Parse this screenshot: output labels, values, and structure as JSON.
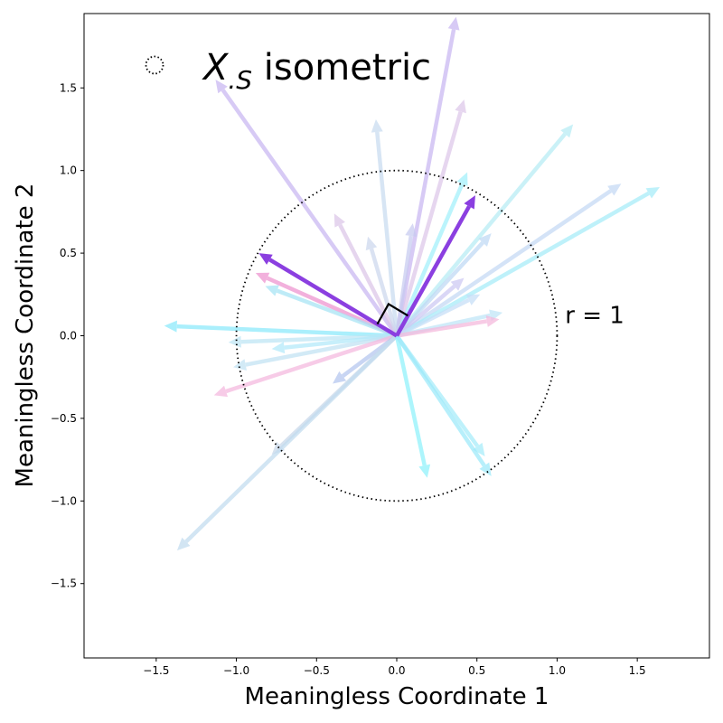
{
  "chart_data": {
    "type": "vector-field",
    "xlabel": "Meaningless Coordinate 1",
    "ylabel": "Meaningless Coordinate 2",
    "xlim": [
      -1.95,
      1.95
    ],
    "ylim": [
      -1.95,
      1.95
    ],
    "xticks": [
      -1.5,
      -1.0,
      -0.5,
      0.0,
      0.5,
      1.0,
      1.5
    ],
    "yticks": [
      -1.5,
      -1.0,
      -0.5,
      0.0,
      0.5,
      1.0,
      1.5
    ],
    "tick_labels": [
      "−1.5",
      "−1.0",
      "−0.5",
      "0.0",
      "0.5",
      "1.0",
      "1.5"
    ],
    "grid": false,
    "circle": {
      "radius": 1,
      "style": "dotted",
      "label": "r = 1",
      "label_pos": [
        1.05,
        0.13
      ]
    },
    "legend": {
      "placement": "top-left",
      "marker": "dotted-circle",
      "label_main": "X",
      "label_sub": ".S",
      "label_rest": " isometric"
    },
    "right_angle_marker": {
      "size": 0.14
    },
    "highlighted_vectors": [
      {
        "x": 0.49,
        "y": 0.85,
        "color": "#8b3fe0"
      },
      {
        "x": -0.86,
        "y": 0.5,
        "color": "#8b3fe0"
      }
    ],
    "vectors": [
      {
        "x": 0.37,
        "y": 1.93,
        "color": "#c8b7f2"
      },
      {
        "x": -1.13,
        "y": 1.55,
        "color": "#c8b7f2"
      },
      {
        "x": 0.42,
        "y": 1.43,
        "color": "#ddc7ea"
      },
      {
        "x": -0.13,
        "y": 1.31,
        "color": "#c9dcf0"
      },
      {
        "x": 1.1,
        "y": 1.28,
        "color": "#b6ecf5"
      },
      {
        "x": 1.4,
        "y": 0.92,
        "color": "#c4d9f5"
      },
      {
        "x": 1.64,
        "y": 0.9,
        "color": "#a6ecf9"
      },
      {
        "x": 0.44,
        "y": 0.99,
        "color": "#a2f0fb"
      },
      {
        "x": -0.39,
        "y": 0.74,
        "color": "#dcc6e8"
      },
      {
        "x": 0.1,
        "y": 0.68,
        "color": "#c7cbf0"
      },
      {
        "x": -0.18,
        "y": 0.6,
        "color": "#cdd8ee"
      },
      {
        "x": 0.59,
        "y": 0.62,
        "color": "#bfd9f5"
      },
      {
        "x": 0.42,
        "y": 0.35,
        "color": "#ccc8f3"
      },
      {
        "x": 0.52,
        "y": 0.25,
        "color": "#c6def8"
      },
      {
        "x": 0.66,
        "y": 0.14,
        "color": "#bfe6f8"
      },
      {
        "x": 0.64,
        "y": 0.1,
        "color": "#f5b8dc"
      },
      {
        "x": -0.88,
        "y": 0.38,
        "color": "#ee93cf"
      },
      {
        "x": -0.82,
        "y": 0.3,
        "color": "#a6e4f5"
      },
      {
        "x": -1.45,
        "y": 0.06,
        "color": "#8ae9fb"
      },
      {
        "x": -1.05,
        "y": -0.04,
        "color": "#bde6f5"
      },
      {
        "x": -0.78,
        "y": -0.08,
        "color": "#b2e9fa"
      },
      {
        "x": -1.02,
        "y": -0.19,
        "color": "#c2e2f3"
      },
      {
        "x": -1.14,
        "y": -0.36,
        "color": "#f5b8de"
      },
      {
        "x": -0.4,
        "y": -0.29,
        "color": "#b4c6ef"
      },
      {
        "x": -0.78,
        "y": -0.72,
        "color": "#c8d8ea"
      },
      {
        "x": -1.37,
        "y": -1.3,
        "color": "#c2dcef"
      },
      {
        "x": 0.19,
        "y": -0.86,
        "color": "#8ef2fb"
      },
      {
        "x": 0.55,
        "y": -0.73,
        "color": "#a6edfa"
      },
      {
        "x": 0.59,
        "y": -0.85,
        "color": "#9ceafa"
      }
    ]
  }
}
